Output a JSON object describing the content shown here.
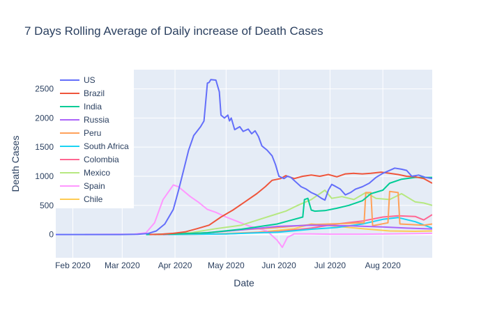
{
  "chart_data": {
    "type": "line",
    "title": "7 Days Rolling Average of Daily increase of Death Cases",
    "xlabel": "Date",
    "ylabel": "Death Cases",
    "x_ticks": [
      "Feb 2020",
      "Mar 2020",
      "Apr 2020",
      "May 2020",
      "Jun 2020",
      "Jul 2020",
      "Aug 2020"
    ],
    "x_range": [
      "2020-01-22",
      "2020-08-30"
    ],
    "y_ticks": [
      0,
      500,
      1000,
      1500,
      2000,
      2500
    ],
    "ylim": [
      -400,
      2830
    ],
    "grid": true,
    "legend_position": "top-left",
    "series": [
      {
        "name": "US",
        "color": "#636efa",
        "points": [
          [
            "2020-01-22",
            0
          ],
          [
            "2020-02-29",
            0
          ],
          [
            "2020-03-10",
            3
          ],
          [
            "2020-03-16",
            15
          ],
          [
            "2020-03-21",
            60
          ],
          [
            "2020-03-26",
            180
          ],
          [
            "2020-03-31",
            430
          ],
          [
            "2020-04-03",
            750
          ],
          [
            "2020-04-06",
            1100
          ],
          [
            "2020-04-09",
            1450
          ],
          [
            "2020-04-12",
            1700
          ],
          [
            "2020-04-16",
            1850
          ],
          [
            "2020-04-18",
            1950
          ],
          [
            "2020-04-20",
            2600
          ],
          [
            "2020-04-21",
            2610
          ],
          [
            "2020-04-22",
            2660
          ],
          [
            "2020-04-25",
            2650
          ],
          [
            "2020-04-27",
            2450
          ],
          [
            "2020-04-28",
            2050
          ],
          [
            "2020-04-30",
            2000
          ],
          [
            "2020-05-02",
            2050
          ],
          [
            "2020-05-03",
            1950
          ],
          [
            "2020-05-04",
            2000
          ],
          [
            "2020-05-06",
            1800
          ],
          [
            "2020-05-09",
            1850
          ],
          [
            "2020-05-11",
            1770
          ],
          [
            "2020-05-14",
            1810
          ],
          [
            "2020-05-16",
            1730
          ],
          [
            "2020-05-18",
            1780
          ],
          [
            "2020-05-20",
            1680
          ],
          [
            "2020-05-22",
            1520
          ],
          [
            "2020-05-25",
            1450
          ],
          [
            "2020-05-28",
            1350
          ],
          [
            "2020-05-30",
            1200
          ],
          [
            "2020-06-01",
            1000
          ],
          [
            "2020-06-04",
            960
          ],
          [
            "2020-06-06",
            1000
          ],
          [
            "2020-06-08",
            980
          ],
          [
            "2020-06-11",
            900
          ],
          [
            "2020-06-14",
            820
          ],
          [
            "2020-06-17",
            780
          ],
          [
            "2020-06-20",
            720
          ],
          [
            "2020-06-23",
            680
          ],
          [
            "2020-06-26",
            620
          ],
          [
            "2020-06-28",
            590
          ],
          [
            "2020-06-30",
            760
          ],
          [
            "2020-07-02",
            860
          ],
          [
            "2020-07-04",
            830
          ],
          [
            "2020-07-07",
            780
          ],
          [
            "2020-07-10",
            680
          ],
          [
            "2020-07-13",
            720
          ],
          [
            "2020-07-16",
            780
          ],
          [
            "2020-07-20",
            820
          ],
          [
            "2020-07-24",
            880
          ],
          [
            "2020-07-28",
            980
          ],
          [
            "2020-08-01",
            1050
          ],
          [
            "2020-08-05",
            1100
          ],
          [
            "2020-08-08",
            1140
          ],
          [
            "2020-08-12",
            1120
          ],
          [
            "2020-08-15",
            1100
          ],
          [
            "2020-08-18",
            1000
          ],
          [
            "2020-08-22",
            1020
          ],
          [
            "2020-08-26",
            980
          ],
          [
            "2020-08-30",
            960
          ]
        ]
      },
      {
        "name": "Brazil",
        "color": "#ef553b",
        "points": [
          [
            "2020-03-17",
            0
          ],
          [
            "2020-03-24",
            5
          ],
          [
            "2020-03-31",
            20
          ],
          [
            "2020-04-07",
            45
          ],
          [
            "2020-04-14",
            100
          ],
          [
            "2020-04-21",
            160
          ],
          [
            "2020-04-28",
            300
          ],
          [
            "2020-05-05",
            420
          ],
          [
            "2020-05-12",
            560
          ],
          [
            "2020-05-19",
            700
          ],
          [
            "2020-05-24",
            820
          ],
          [
            "2020-05-28",
            930
          ],
          [
            "2020-06-02",
            960
          ],
          [
            "2020-06-05",
            1010
          ],
          [
            "2020-06-10",
            960
          ],
          [
            "2020-06-15",
            1000
          ],
          [
            "2020-06-20",
            1020
          ],
          [
            "2020-06-25",
            1000
          ],
          [
            "2020-06-30",
            1030
          ],
          [
            "2020-07-05",
            990
          ],
          [
            "2020-07-10",
            1040
          ],
          [
            "2020-07-15",
            1050
          ],
          [
            "2020-07-20",
            1040
          ],
          [
            "2020-07-25",
            1050
          ],
          [
            "2020-07-31",
            1070
          ],
          [
            "2020-08-05",
            1050
          ],
          [
            "2020-08-10",
            1030
          ],
          [
            "2020-08-15",
            1000
          ],
          [
            "2020-08-20",
            990
          ],
          [
            "2020-08-25",
            960
          ],
          [
            "2020-08-30",
            880
          ]
        ]
      },
      {
        "name": "India",
        "color": "#00cc96",
        "points": [
          [
            "2020-03-15",
            0
          ],
          [
            "2020-04-01",
            8
          ],
          [
            "2020-04-20",
            30
          ],
          [
            "2020-05-10",
            90
          ],
          [
            "2020-05-31",
            180
          ],
          [
            "2020-06-10",
            260
          ],
          [
            "2020-06-15",
            300
          ],
          [
            "2020-06-16",
            600
          ],
          [
            "2020-06-18",
            620
          ],
          [
            "2020-06-20",
            420
          ],
          [
            "2020-06-22",
            400
          ],
          [
            "2020-06-28",
            410
          ],
          [
            "2020-07-05",
            450
          ],
          [
            "2020-07-12",
            500
          ],
          [
            "2020-07-20",
            580
          ],
          [
            "2020-07-25",
            700
          ],
          [
            "2020-08-01",
            760
          ],
          [
            "2020-08-05",
            880
          ],
          [
            "2020-08-12",
            950
          ],
          [
            "2020-08-20",
            980
          ],
          [
            "2020-08-30",
            980
          ]
        ]
      },
      {
        "name": "Russia",
        "color": "#ab63fa",
        "points": [
          [
            "2020-03-25",
            0
          ],
          [
            "2020-04-20",
            30
          ],
          [
            "2020-05-10",
            80
          ],
          [
            "2020-06-01",
            140
          ],
          [
            "2020-06-20",
            160
          ],
          [
            "2020-07-10",
            150
          ],
          [
            "2020-08-01",
            130
          ],
          [
            "2020-08-15",
            110
          ],
          [
            "2020-08-30",
            95
          ]
        ]
      },
      {
        "name": "Peru",
        "color": "#ffa15a",
        "points": [
          [
            "2020-03-20",
            0
          ],
          [
            "2020-04-15",
            20
          ],
          [
            "2020-05-10",
            80
          ],
          [
            "2020-06-01",
            120
          ],
          [
            "2020-06-20",
            170
          ],
          [
            "2020-07-10",
            190
          ],
          [
            "2020-07-21",
            200
          ],
          [
            "2020-07-22",
            720
          ],
          [
            "2020-07-25",
            720
          ],
          [
            "2020-07-26",
            150
          ],
          [
            "2020-08-04",
            200
          ],
          [
            "2020-08-05",
            740
          ],
          [
            "2020-08-10",
            720
          ],
          [
            "2020-08-11",
            180
          ],
          [
            "2020-08-25",
            160
          ],
          [
            "2020-08-30",
            180
          ]
        ]
      },
      {
        "name": "South Africa",
        "color": "#19d3f3",
        "points": [
          [
            "2020-03-28",
            0
          ],
          [
            "2020-05-01",
            10
          ],
          [
            "2020-06-01",
            40
          ],
          [
            "2020-06-20",
            90
          ],
          [
            "2020-07-05",
            120
          ],
          [
            "2020-07-20",
            180
          ],
          [
            "2020-08-01",
            260
          ],
          [
            "2020-08-10",
            290
          ],
          [
            "2020-08-20",
            220
          ],
          [
            "2020-08-30",
            110
          ]
        ]
      },
      {
        "name": "Colombia",
        "color": "#ff6692",
        "points": [
          [
            "2020-03-22",
            0
          ],
          [
            "2020-05-01",
            10
          ],
          [
            "2020-06-01",
            50
          ],
          [
            "2020-06-20",
            110
          ],
          [
            "2020-07-05",
            180
          ],
          [
            "2020-07-20",
            230
          ],
          [
            "2020-08-01",
            300
          ],
          [
            "2020-08-10",
            320
          ],
          [
            "2020-08-20",
            310
          ],
          [
            "2020-08-25",
            250
          ],
          [
            "2020-08-30",
            340
          ]
        ]
      },
      {
        "name": "Mexico",
        "color": "#b6e880",
        "points": [
          [
            "2020-03-20",
            0
          ],
          [
            "2020-04-10",
            30
          ],
          [
            "2020-04-25",
            100
          ],
          [
            "2020-05-10",
            160
          ],
          [
            "2020-05-25",
            300
          ],
          [
            "2020-06-05",
            400
          ],
          [
            "2020-06-12",
            500
          ],
          [
            "2020-06-20",
            600
          ],
          [
            "2020-06-28",
            760
          ],
          [
            "2020-07-02",
            620
          ],
          [
            "2020-07-08",
            650
          ],
          [
            "2020-07-15",
            600
          ],
          [
            "2020-07-22",
            720
          ],
          [
            "2020-07-28",
            620
          ],
          [
            "2020-08-05",
            600
          ],
          [
            "2020-08-12",
            700
          ],
          [
            "2020-08-20",
            560
          ],
          [
            "2020-08-25",
            540
          ],
          [
            "2020-08-30",
            500
          ]
        ]
      },
      {
        "name": "Spain",
        "color": "#ff97ff",
        "points": [
          [
            "2020-02-08",
            0
          ],
          [
            "2020-03-08",
            5
          ],
          [
            "2020-03-15",
            30
          ],
          [
            "2020-03-20",
            200
          ],
          [
            "2020-03-25",
            600
          ],
          [
            "2020-03-31",
            850
          ],
          [
            "2020-04-03",
            820
          ],
          [
            "2020-04-10",
            650
          ],
          [
            "2020-04-15",
            550
          ],
          [
            "2020-04-20",
            430
          ],
          [
            "2020-04-25",
            380
          ],
          [
            "2020-05-01",
            300
          ],
          [
            "2020-05-08",
            220
          ],
          [
            "2020-05-15",
            140
          ],
          [
            "2020-05-25",
            60
          ],
          [
            "2020-05-31",
            -100
          ],
          [
            "2020-06-03",
            -220
          ],
          [
            "2020-06-06",
            -50
          ],
          [
            "2020-06-10",
            10
          ],
          [
            "2020-06-20",
            10
          ],
          [
            "2020-07-01",
            5
          ],
          [
            "2020-07-20",
            5
          ],
          [
            "2020-08-05",
            10
          ],
          [
            "2020-08-20",
            15
          ],
          [
            "2020-08-30",
            20
          ]
        ]
      },
      {
        "name": "Chile",
        "color": "#fecb52",
        "points": [
          [
            "2020-03-25",
            0
          ],
          [
            "2020-04-25",
            10
          ],
          [
            "2020-05-20",
            40
          ],
          [
            "2020-06-10",
            100
          ],
          [
            "2020-06-20",
            180
          ],
          [
            "2020-07-05",
            140
          ],
          [
            "2020-07-20",
            100
          ],
          [
            "2020-08-05",
            60
          ],
          [
            "2020-08-20",
            55
          ],
          [
            "2020-08-30",
            60
          ]
        ]
      }
    ]
  }
}
